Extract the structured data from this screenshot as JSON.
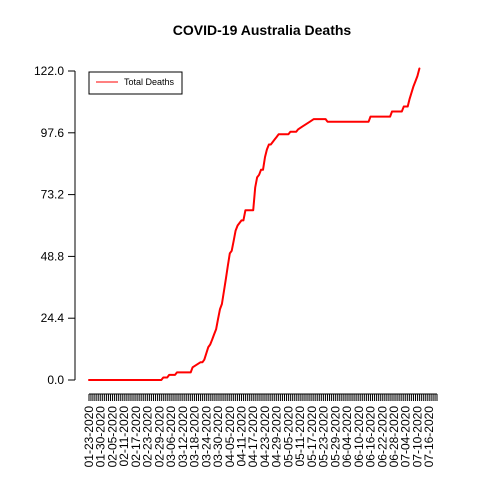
{
  "chart_data": {
    "type": "line",
    "title": "COVID-19 Australia Deaths",
    "xlabel": "",
    "ylabel": "",
    "ylim": [
      0,
      122
    ],
    "y_ticks": [
      "0.0",
      "24.4",
      "48.8",
      "73.2",
      "97.6",
      "122.0"
    ],
    "x_start": "2020-01-23",
    "x_end": "2020-07-19",
    "x_tick_labels": [
      "01-23-2020",
      "01-30-2020",
      "02-05-2020",
      "02-11-2020",
      "02-17-2020",
      "02-23-2020",
      "02-29-2020",
      "03-06-2020",
      "03-12-2020",
      "03-18-2020",
      "03-24-2020",
      "03-30-2020",
      "04-05-2020",
      "04-11-2020",
      "04-17-2020",
      "04-23-2020",
      "04-29-2020",
      "05-05-2020",
      "05-11-2020",
      "05-17-2020",
      "05-23-2020",
      "05-29-2020",
      "06-04-2020",
      "06-10-2020",
      "06-16-2020",
      "06-22-2020",
      "06-28-2020",
      "07-04-2020",
      "07-10-2020",
      "07-16-2020"
    ],
    "legend": {
      "position": "top-left",
      "entries": [
        "Total Deaths"
      ]
    },
    "grid": false,
    "series": [
      {
        "name": "Total Deaths",
        "color": "#ff0000",
        "points": [
          [
            "2020-01-23",
            0
          ],
          [
            "2020-02-29",
            0
          ],
          [
            "2020-03-01",
            1
          ],
          [
            "2020-03-03",
            1
          ],
          [
            "2020-03-04",
            2
          ],
          [
            "2020-03-07",
            2
          ],
          [
            "2020-03-08",
            3
          ],
          [
            "2020-03-09",
            3
          ],
          [
            "2020-03-10",
            3
          ],
          [
            "2020-03-15",
            3
          ],
          [
            "2020-03-16",
            5
          ],
          [
            "2020-03-18",
            6
          ],
          [
            "2020-03-20",
            7
          ],
          [
            "2020-03-21",
            7
          ],
          [
            "2020-03-22",
            8
          ],
          [
            "2020-03-24",
            13
          ],
          [
            "2020-03-25",
            14
          ],
          [
            "2020-03-26",
            16
          ],
          [
            "2020-03-27",
            18
          ],
          [
            "2020-03-28",
            20
          ],
          [
            "2020-03-29",
            24
          ],
          [
            "2020-03-30",
            28
          ],
          [
            "2020-03-31",
            30
          ],
          [
            "2020-04-01",
            35
          ],
          [
            "2020-04-02",
            40
          ],
          [
            "2020-04-03",
            45
          ],
          [
            "2020-04-04",
            50
          ],
          [
            "2020-04-05",
            51
          ],
          [
            "2020-04-06",
            55
          ],
          [
            "2020-04-07",
            59
          ],
          [
            "2020-04-08",
            61
          ],
          [
            "2020-04-09",
            62
          ],
          [
            "2020-04-10",
            63
          ],
          [
            "2020-04-11",
            63
          ],
          [
            "2020-04-12",
            67
          ],
          [
            "2020-04-14",
            67
          ],
          [
            "2020-04-16",
            67
          ],
          [
            "2020-04-17",
            76
          ],
          [
            "2020-04-18",
            80
          ],
          [
            "2020-04-19",
            81
          ],
          [
            "2020-04-20",
            83
          ],
          [
            "2020-04-21",
            83
          ],
          [
            "2020-04-22",
            88
          ],
          [
            "2020-04-23",
            91
          ],
          [
            "2020-04-24",
            93
          ],
          [
            "2020-04-25",
            93
          ],
          [
            "2020-04-26",
            94
          ],
          [
            "2020-04-27",
            95
          ],
          [
            "2020-04-28",
            96
          ],
          [
            "2020-04-29",
            97
          ],
          [
            "2020-05-04",
            97
          ],
          [
            "2020-05-05",
            98
          ],
          [
            "2020-05-08",
            98
          ],
          [
            "2020-05-09",
            99
          ],
          [
            "2020-05-11",
            100
          ],
          [
            "2020-05-13",
            101
          ],
          [
            "2020-05-15",
            102
          ],
          [
            "2020-05-17",
            103
          ],
          [
            "2020-05-23",
            103
          ],
          [
            "2020-05-24",
            102
          ],
          [
            "2020-06-14",
            102
          ],
          [
            "2020-06-15",
            104
          ],
          [
            "2020-06-25",
            104
          ],
          [
            "2020-06-26",
            106
          ],
          [
            "2020-07-01",
            106
          ],
          [
            "2020-07-02",
            108
          ],
          [
            "2020-07-04",
            108
          ],
          [
            "2020-07-05",
            111
          ],
          [
            "2020-07-07",
            116
          ],
          [
            "2020-07-08",
            118
          ],
          [
            "2020-07-09",
            120
          ],
          [
            "2020-07-10",
            123
          ]
        ]
      }
    ]
  }
}
